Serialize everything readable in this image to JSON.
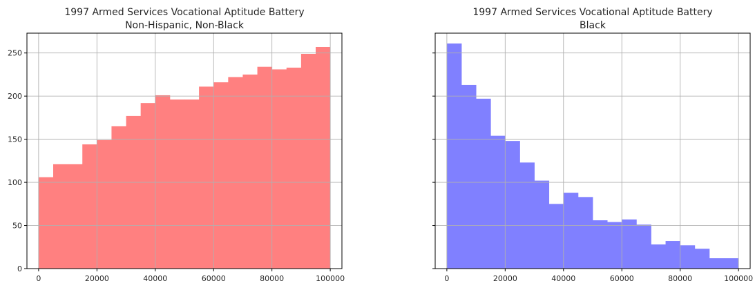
{
  "chart_data": [
    {
      "type": "bar",
      "title": "1997 Armed Services Vocational Aptitude Battery",
      "subtitle": "Non-Hispanic, Non-Black",
      "xlabel": "",
      "ylabel": "",
      "bin_edges": [
        0,
        5000,
        10000,
        15000,
        20000,
        25000,
        30000,
        35000,
        40000,
        45000,
        50000,
        55000,
        60000,
        65000,
        70000,
        75000,
        80000,
        85000,
        90000,
        95000,
        100000
      ],
      "values": [
        106,
        121,
        121,
        144,
        149,
        165,
        177,
        192,
        201,
        196,
        196,
        211,
        216,
        222,
        225,
        234,
        231,
        233,
        249,
        257
      ],
      "xlim": [
        -4000,
        104000
      ],
      "ylim": [
        0,
        273
      ],
      "xticks": [
        0,
        20000,
        40000,
        60000,
        80000,
        100000
      ],
      "xtick_labels": [
        "0",
        "20000",
        "40000",
        "60000",
        "80000",
        "100000"
      ],
      "yticks": [
        0,
        50,
        100,
        150,
        200,
        250
      ],
      "ytick_labels": [
        "0",
        "50",
        "100",
        "150",
        "200",
        "250"
      ],
      "grid": true,
      "color": "#ff8080"
    },
    {
      "type": "bar",
      "title": "1997 Armed Services Vocational Aptitude Battery",
      "subtitle": "Black",
      "xlabel": "",
      "ylabel": "",
      "bin_edges": [
        0,
        5000,
        10000,
        15000,
        20000,
        25000,
        30000,
        35000,
        40000,
        45000,
        50000,
        55000,
        60000,
        65000,
        70000,
        75000,
        80000,
        85000,
        90000,
        95000,
        100000
      ],
      "values": [
        261,
        213,
        197,
        154,
        148,
        123,
        102,
        75,
        88,
        83,
        56,
        54,
        57,
        51,
        28,
        32,
        27,
        23,
        12,
        12
      ],
      "xlim": [
        -4000,
        104000
      ],
      "ylim": [
        0,
        273
      ],
      "xticks": [
        0,
        20000,
        40000,
        60000,
        80000,
        100000
      ],
      "xtick_labels": [
        "0",
        "20000",
        "40000",
        "60000",
        "80000",
        "100000"
      ],
      "yticks": [
        0,
        50,
        100,
        150,
        200,
        250
      ],
      "ytick_labels": [],
      "grid": true,
      "color": "#8080ff"
    }
  ]
}
